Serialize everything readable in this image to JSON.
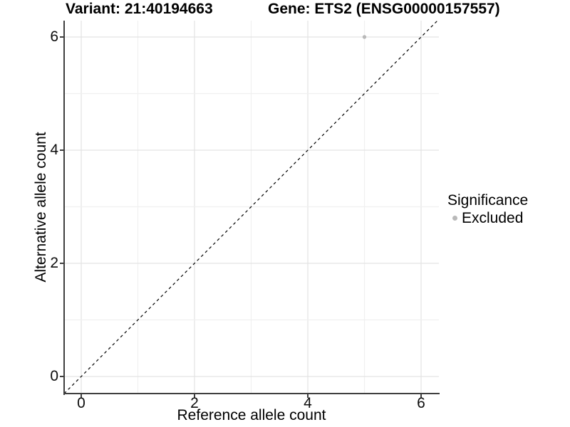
{
  "titles": {
    "variant": "Variant: 21:40194663",
    "gene": "Gene: ETS2 (ENSG00000157557)"
  },
  "x_axis": {
    "label": "Reference allele count",
    "tick_values": [
      0,
      2,
      4,
      6
    ],
    "grid_values": [
      0,
      1,
      2,
      3,
      4,
      5,
      6
    ]
  },
  "y_axis": {
    "label": "Alternative allele count",
    "tick_values": [
      0,
      2,
      4,
      6
    ],
    "grid_values": [
      0,
      1,
      2,
      3,
      4,
      5,
      6
    ]
  },
  "legend": {
    "title": "Significance",
    "items": [
      {
        "label": "Excluded",
        "color": "#b9b9b9"
      }
    ]
  },
  "chart_data": {
    "type": "scatter",
    "title_left": "Variant: 21:40194663",
    "title_right": "Gene: ETS2 (ENSG00000157557)",
    "xlabel": "Reference allele count",
    "ylabel": "Alternative allele count",
    "xlim": [
      -0.3,
      6.33
    ],
    "ylim": [
      -0.3,
      6.3
    ],
    "x_ticks": [
      0,
      2,
      4,
      6
    ],
    "y_ticks": [
      0,
      2,
      4,
      6
    ],
    "grid": "on",
    "legend_position": "right",
    "series": [
      {
        "name": "Excluded",
        "color": "#b9b9b9",
        "points": [
          {
            "x": 5,
            "y": 6
          }
        ]
      }
    ],
    "reference_line": {
      "type": "identity",
      "style": "dashed",
      "color": "#000000"
    }
  },
  "colors": {
    "background": "#ffffff",
    "axis_line": "#3f3f3f",
    "grid_major": "#e3e3e3",
    "grid_minor": "#f0f0f0",
    "point": "#b9b9b9",
    "text": "#000000"
  }
}
